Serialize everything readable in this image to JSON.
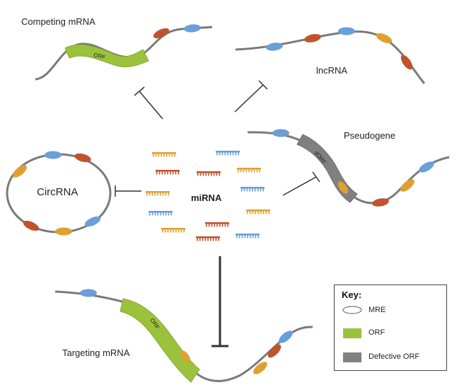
{
  "labels": {
    "competing_mrna": "Competing mRNA",
    "lncrna": "lncRNA",
    "pseudogene": "Pseudogene",
    "circrna": "CircRNA",
    "mirna": "miRNA",
    "targeting_mrna": "Targeting mRNA",
    "orf": "ORF",
    "dorf": "dORF"
  },
  "key": {
    "title": "Key:",
    "items": [
      {
        "label": "MRE",
        "swatch": "ellipse-outline"
      },
      {
        "label": "ORF",
        "swatch": "green"
      },
      {
        "label": "Defective ORF",
        "swatch": "gray"
      }
    ]
  },
  "colors": {
    "strand": "#7a7a7a",
    "mre_blue": "#6a9fd8",
    "mre_orange": "#e0a030",
    "mre_red": "#c0532c",
    "orf_green": "#9bc23c",
    "defective_gray": "#808080",
    "inhibit_line": "#333333"
  }
}
